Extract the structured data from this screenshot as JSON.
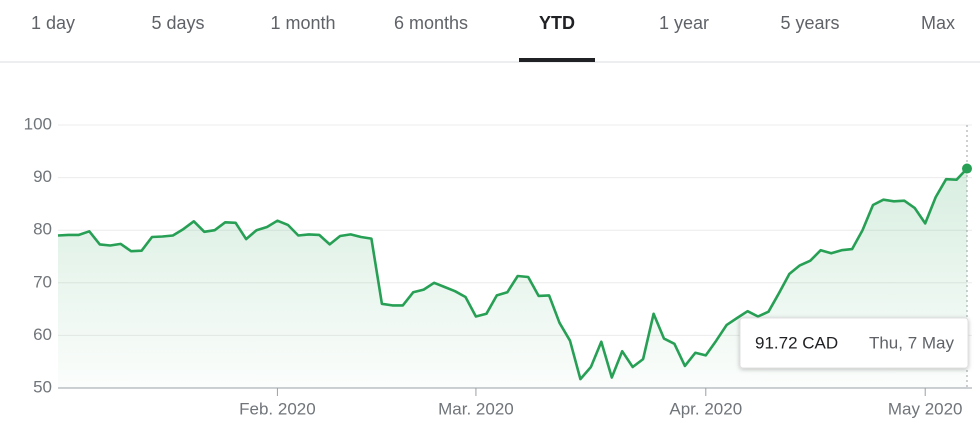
{
  "tabs": [
    "1 day",
    "5 days",
    "1 month",
    "6 months",
    "YTD",
    "1 year",
    "5 years",
    "Max"
  ],
  "selected_tab": "YTD",
  "chart_data": {
    "type": "line",
    "color": "#27a055",
    "grid": true,
    "values": [
      79.0,
      79.1,
      79.1,
      79.8,
      77.3,
      77.1,
      77.4,
      76.0,
      76.1,
      78.7,
      78.8,
      79.0,
      80.2,
      81.7,
      79.7,
      80.0,
      81.5,
      81.4,
      78.3,
      80.0,
      80.6,
      81.8,
      81.0,
      79.0,
      79.2,
      79.1,
      77.3,
      78.9,
      79.2,
      78.7,
      78.4,
      66.0,
      65.7,
      65.7,
      68.2,
      68.7,
      70.0,
      69.2,
      68.4,
      67.3,
      63.6,
      64.1,
      67.6,
      68.2,
      71.3,
      71.1,
      67.5,
      67.6,
      62.4,
      59.0,
      51.7,
      54.0,
      58.8,
      52.0,
      57.0,
      54.0,
      55.5,
      64.1,
      59.4,
      58.4,
      54.2,
      56.7,
      56.2,
      59.0,
      62.0,
      63.3,
      64.6,
      63.6,
      64.5,
      68.0,
      71.7,
      73.3,
      74.2,
      76.2,
      75.6,
      76.2,
      76.4,
      80.0,
      84.8,
      85.8,
      85.5,
      85.6,
      84.2,
      81.3,
      86.3,
      89.7,
      89.6,
      91.72
    ],
    "xlim": [
      0,
      87
    ],
    "xticks": [
      {
        "value": 21,
        "label": "Feb. 2020"
      },
      {
        "value": 40,
        "label": "Mar. 2020"
      },
      {
        "value": 62,
        "label": "Apr. 2020"
      },
      {
        "value": 83,
        "label": "May 2020"
      }
    ],
    "ylim": [
      50,
      100
    ],
    "yticks": [
      50,
      60,
      70,
      80,
      90,
      100
    ],
    "tooltip": {
      "label": "91.72 CAD",
      "date": "Thu, 7 May"
    }
  }
}
